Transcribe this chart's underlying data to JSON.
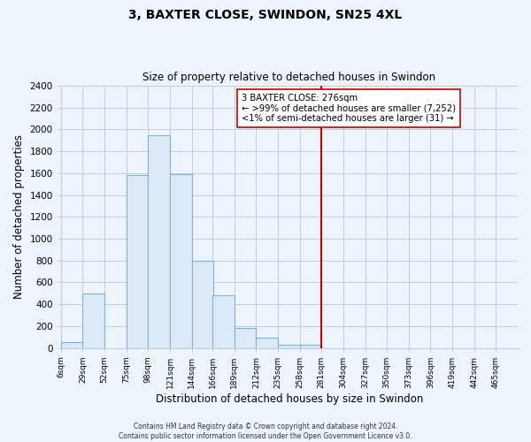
{
  "title": "3, BAXTER CLOSE, SWINDON, SN25 4XL",
  "subtitle": "Size of property relative to detached houses in Swindon",
  "xlabel": "Distribution of detached houses by size in Swindon",
  "ylabel": "Number of detached properties",
  "bar_left_edges": [
    6,
    29,
    52,
    75,
    98,
    121,
    144,
    166,
    189,
    212,
    235,
    258,
    281,
    304,
    327,
    350,
    373,
    396,
    419,
    442
  ],
  "bar_widths": [
    23,
    23,
    23,
    23,
    23,
    23,
    23,
    23,
    23,
    23,
    23,
    23,
    23,
    23,
    23,
    23,
    23,
    23,
    23,
    23
  ],
  "bar_heights": [
    50,
    500,
    0,
    1580,
    1950,
    1590,
    800,
    480,
    185,
    90,
    30,
    25,
    0,
    0,
    0,
    0,
    0,
    0,
    0,
    0
  ],
  "bar_color": "#dce9f7",
  "bar_edgecolor": "#7fb2e0",
  "vline_x": 281,
  "vline_color": "#cc0000",
  "annotation_title": "3 BAXTER CLOSE: 276sqm",
  "annotation_line1": "← >99% of detached houses are smaller (7,252)",
  "annotation_line2": "<1% of semi-detached houses are larger (31) →",
  "ylim": [
    0,
    2400
  ],
  "yticks": [
    0,
    200,
    400,
    600,
    800,
    1000,
    1200,
    1400,
    1600,
    1800,
    2000,
    2200,
    2400
  ],
  "xtick_labels": [
    "6sqm",
    "29sqm",
    "52sqm",
    "75sqm",
    "98sqm",
    "121sqm",
    "144sqm",
    "166sqm",
    "189sqm",
    "212sqm",
    "235sqm",
    "258sqm",
    "281sqm",
    "304sqm",
    "327sqm",
    "350sqm",
    "373sqm",
    "396sqm",
    "419sqm",
    "442sqm",
    "465sqm"
  ],
  "xtick_positions": [
    6,
    29,
    52,
    75,
    98,
    121,
    144,
    166,
    189,
    212,
    235,
    258,
    281,
    304,
    327,
    350,
    373,
    396,
    419,
    442,
    465
  ],
  "footer_line1": "Contains HM Land Registry data © Crown copyright and database right 2024.",
  "footer_line2": "Contains public sector information licensed under the Open Government Licence v3.0.",
  "background_color": "#eef4fb",
  "plot_bg_color": "#eef4fb",
  "grid_color": "#c0cfe0"
}
